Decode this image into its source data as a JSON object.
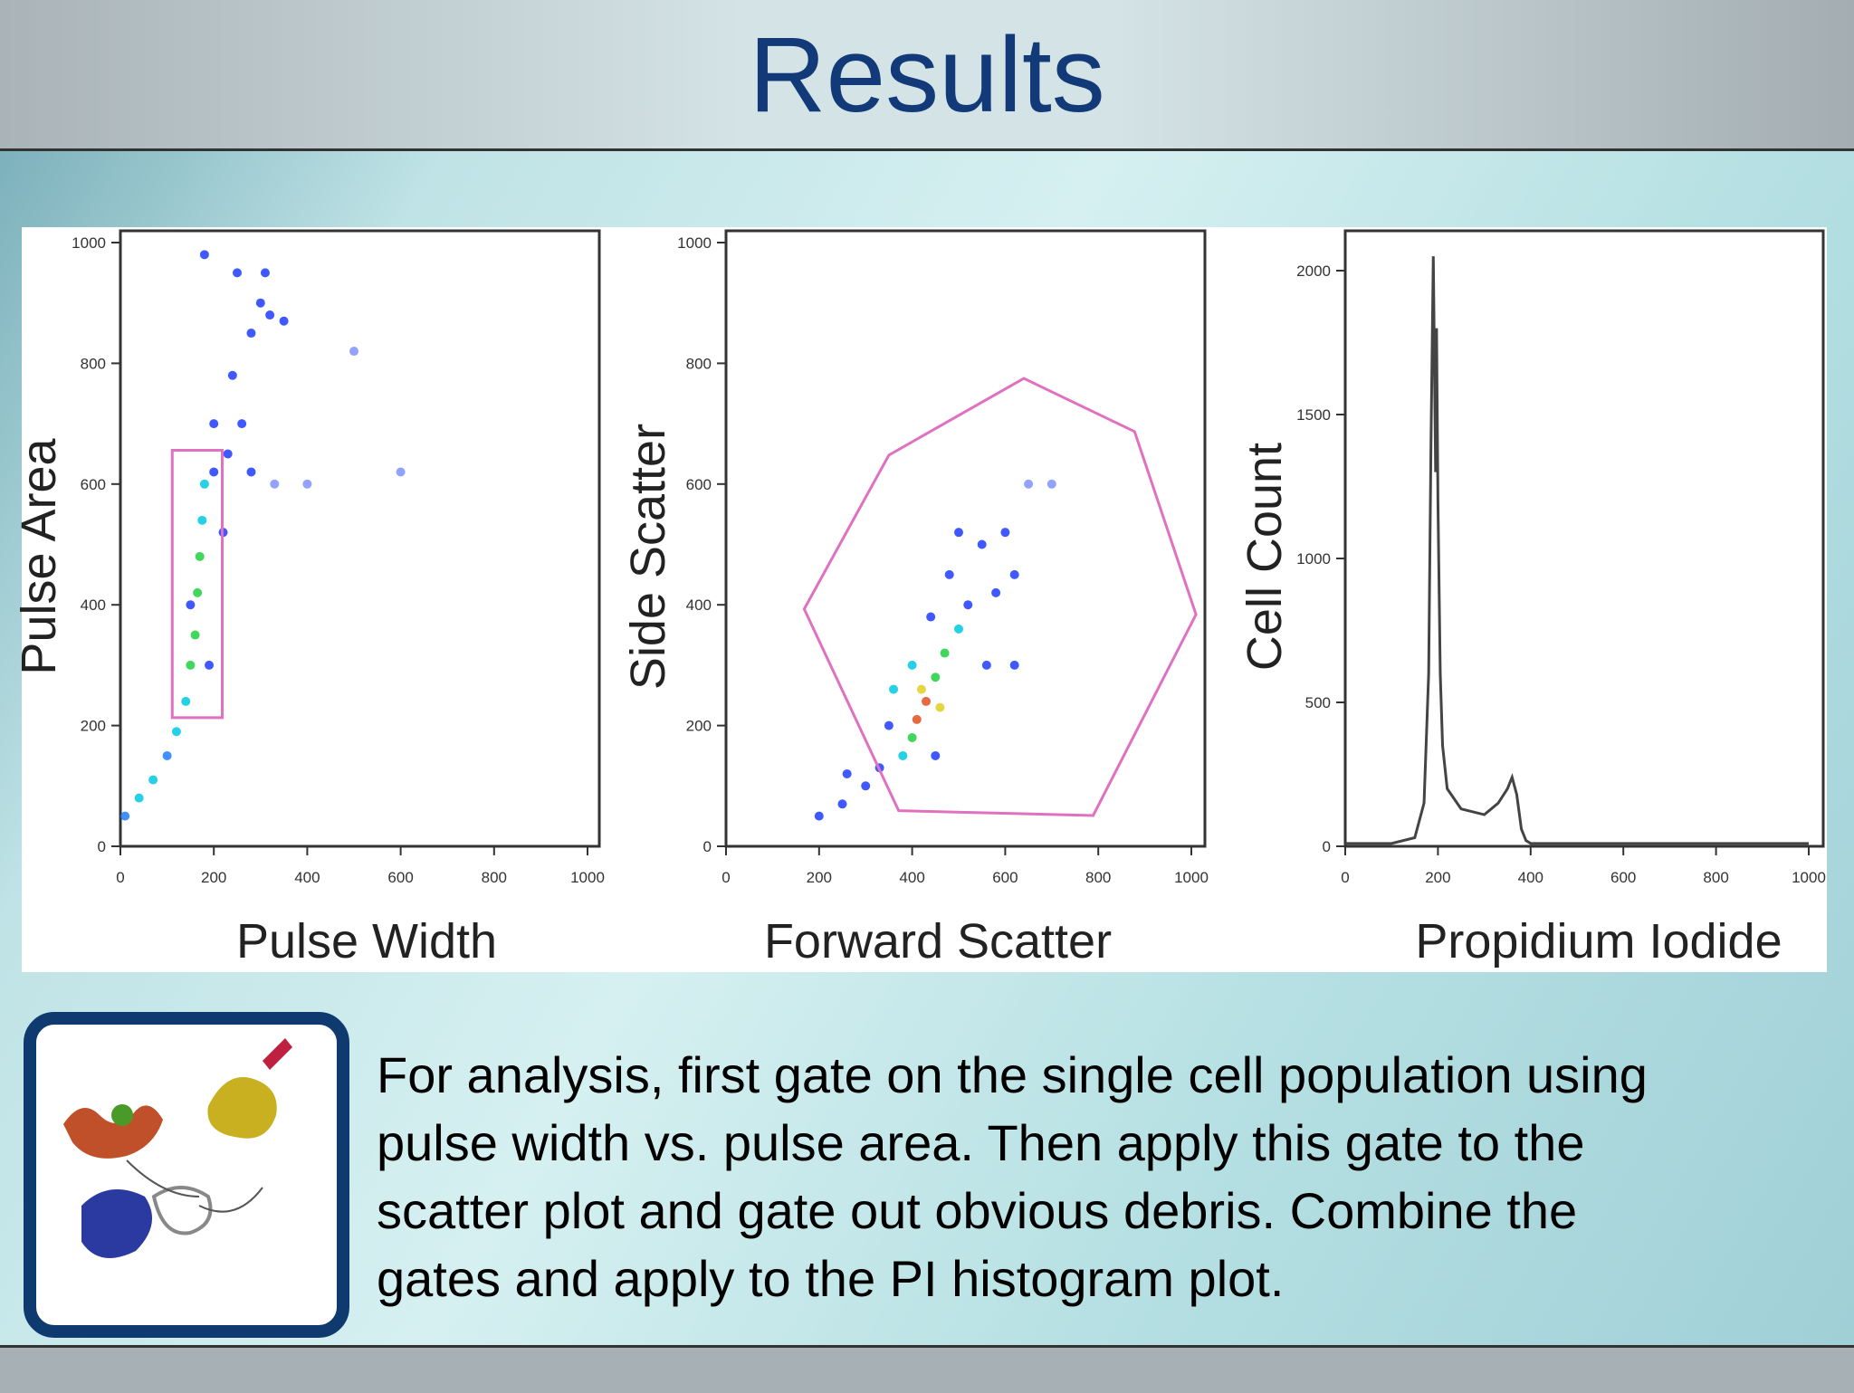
{
  "title": "Results",
  "body": [
    "For analysis,  first gate on the single cell population using",
    "pulse width vs. pulse area. Then apply this gate to the",
    "scatter plot and gate out obvious debris. Combine the",
    "gates and apply to the PI histogram plot."
  ],
  "chart_data": [
    {
      "type": "scatter",
      "x_label": "Pulse Width",
      "y_label": "Pulse Area",
      "x": [
        10,
        40,
        70,
        100,
        120,
        140,
        150,
        160,
        165,
        170,
        175,
        180,
        200,
        230,
        260,
        240,
        280,
        300,
        320,
        250,
        350,
        200,
        400,
        330,
        150,
        190,
        220,
        500,
        600,
        280,
        310,
        180
      ],
      "values": [
        50,
        80,
        110,
        150,
        190,
        240,
        300,
        350,
        420,
        480,
        540,
        600,
        620,
        650,
        700,
        780,
        850,
        900,
        880,
        950,
        870,
        700,
        600,
        600,
        400,
        300,
        520,
        820,
        620,
        620,
        950,
        980
      ],
      "point_colors": [
        "#1f7cff",
        "#00c8e0",
        "#00c8e0",
        "#1f7cff",
        "#00c8e0",
        "#00c8e0",
        "#20d040",
        "#20d040",
        "#20d040",
        "#20d040",
        "#00c8e0",
        "#00c8e0",
        "#1f3cff",
        "#1f3cff",
        "#1f3cff",
        "#1f3cff",
        "#1f3cff",
        "#1f3cff",
        "#1f3cff",
        "#1f3cff",
        "#1f3cff",
        "#1f3cff",
        "#8090ff",
        "#8090ff",
        "#1f3cff",
        "#1f3cff",
        "#1f3cff",
        "#8090ff",
        "#8090ff",
        "#1f3cff",
        "#1f3cff",
        "#1f3cff"
      ],
      "gate": {
        "x": [
          111,
          218,
          218,
          111
        ],
        "y": [
          656,
          656,
          213,
          213
        ]
      },
      "gate_color": "#e070c0",
      "xlim": [
        0,
        1000
      ],
      "ylim": [
        0,
        1000
      ],
      "xticks": [
        0,
        200,
        400,
        600,
        800,
        1000
      ],
      "yticks": [
        0,
        200,
        400,
        600,
        800,
        1000
      ]
    },
    {
      "type": "scatter",
      "x_label": "Forward Scatter",
      "y_label": "Side Scatter",
      "x": [
        430,
        410,
        450,
        400,
        470,
        500,
        380,
        520,
        300,
        250,
        200,
        350,
        550,
        600,
        620,
        480,
        400,
        330,
        560,
        650,
        500,
        700,
        440,
        580,
        260,
        360,
        620,
        450,
        420,
        460
      ],
      "values": [
        240,
        210,
        280,
        180,
        320,
        360,
        150,
        400,
        100,
        70,
        50,
        200,
        500,
        520,
        450,
        450,
        300,
        130,
        300,
        600,
        520,
        600,
        380,
        420,
        120,
        260,
        300,
        150,
        260,
        230
      ],
      "point_colors": [
        "#e05020",
        "#e05020",
        "#20d040",
        "#20d040",
        "#20d040",
        "#00c8e0",
        "#00c8e0",
        "#1f3cff",
        "#1f3cff",
        "#1f3cff",
        "#1f3cff",
        "#1f3cff",
        "#1f3cff",
        "#1f3cff",
        "#1f3cff",
        "#1f3cff",
        "#00c8e0",
        "#1f3cff",
        "#1f3cff",
        "#8090ff",
        "#1f3cff",
        "#8090ff",
        "#1f3cff",
        "#1f3cff",
        "#1f3cff",
        "#00c8e0",
        "#1f3cff",
        "#1f3cff",
        "#e0d020",
        "#e0d020"
      ],
      "gate": {
        "x": [
          168,
          350,
          640,
          878,
          1010,
          789,
          371
        ],
        "y": [
          393,
          648,
          775,
          687,
          384,
          51,
          59
        ]
      },
      "gate_color": "#e070c0",
      "xlim": [
        0,
        1000
      ],
      "ylim": [
        0,
        1000
      ],
      "xticks": [
        0,
        200,
        400,
        600,
        800,
        1000
      ],
      "yticks": [
        0,
        200,
        400,
        600,
        800,
        1000
      ]
    },
    {
      "type": "line",
      "x_label": "Propidium Iodide",
      "y_label": "Cell Count",
      "color": "#444444",
      "x": [
        0,
        100,
        150,
        170,
        180,
        185,
        190,
        195,
        197,
        200,
        205,
        210,
        220,
        250,
        300,
        330,
        350,
        360,
        370,
        380,
        390,
        400,
        1000
      ],
      "values": [
        10,
        10,
        30,
        150,
        600,
        1400,
        2050,
        1300,
        1800,
        1200,
        600,
        350,
        200,
        130,
        110,
        150,
        200,
        240,
        180,
        60,
        20,
        10,
        10
      ],
      "xlim": [
        0,
        1000
      ],
      "ylim": [
        0,
        2100
      ],
      "xticks": [
        0,
        200,
        400,
        600,
        800,
        1000
      ],
      "yticks": [
        0,
        500,
        1000,
        1500,
        2000
      ]
    }
  ]
}
